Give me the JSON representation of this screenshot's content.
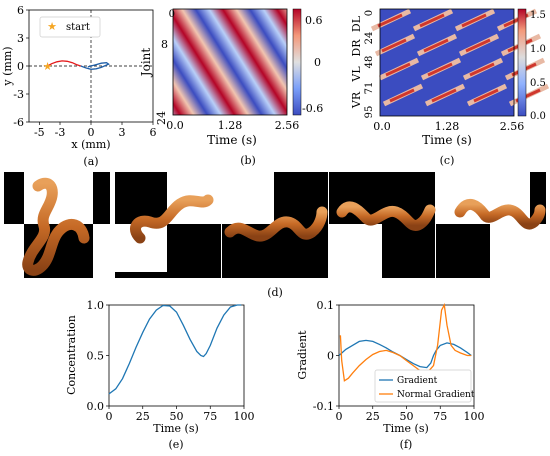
{
  "chart_data": [
    {
      "panel": "(a)",
      "type": "line",
      "xlabel": "x (mm)",
      "ylabel": "y (mm)",
      "xlim": [
        -6,
        6
      ],
      "ylim": [
        -6,
        6
      ],
      "xticks": [
        -5,
        -3,
        0,
        3,
        6
      ],
      "yticks": [
        -6,
        -3,
        0,
        3,
        6
      ],
      "legend": {
        "entries": [
          "start"
        ],
        "placement": "top-left"
      },
      "start_point": {
        "x": -4.2,
        "y": 0
      },
      "series": [
        {
          "color": "#e41a1c",
          "x": [
            -4.2,
            -3.8,
            -3.3,
            -2.8,
            -2.3,
            -1.8,
            -1.4,
            -1.0
          ],
          "y": [
            0.0,
            0.25,
            0.45,
            0.55,
            0.5,
            0.35,
            0.15,
            0.0
          ]
        },
        {
          "color": "#1f5fa8",
          "x": [
            -1.0,
            -0.5,
            0.0,
            0.5,
            1.0,
            1.4,
            1.7,
            1.5,
            1.0,
            0.5,
            0.0,
            -0.3
          ],
          "y": [
            0.0,
            -0.2,
            -0.35,
            -0.3,
            -0.15,
            0.05,
            0.2,
            0.35,
            0.3,
            0.15,
            0.0,
            -0.1
          ]
        }
      ]
    },
    {
      "panel": "(b)",
      "type": "heatmap",
      "xlabel": "Time (s)",
      "ylabel": "Joint",
      "xticks": [
        "0.0",
        "1.28",
        "2.56"
      ],
      "yticks": [
        "0",
        "8",
        "24"
      ],
      "colorbar": {
        "ticks": [
          "0.6",
          "0",
          "-0.6"
        ],
        "range": [
          -0.7,
          0.7
        ]
      }
    },
    {
      "panel": "(c)",
      "type": "heatmap",
      "xlabel": "Time (s)",
      "xticks": [
        "0.0",
        "1.28",
        "2.56"
      ],
      "yticks": [
        "0",
        "24",
        "48",
        "71",
        "95"
      ],
      "group_labels": [
        "VR",
        "VL",
        "DR",
        "DL"
      ],
      "colorbar": {
        "ticks": [
          "1.5",
          "1.0",
          "0.5",
          "0.0"
        ],
        "range": [
          0,
          1.6
        ]
      }
    },
    {
      "panel": "(e)",
      "type": "line",
      "xlabel": "Time (s)",
      "ylabel": "Concentration",
      "xlim": [
        0,
        100
      ],
      "ylim": [
        0,
        1
      ],
      "xticks": [
        0,
        25,
        50,
        75,
        100
      ],
      "yticks": [
        "0.0",
        "0.5",
        "1.0"
      ],
      "series": [
        {
          "color": "#1f77b4",
          "x": [
            0,
            5,
            10,
            15,
            20,
            25,
            30,
            35,
            40,
            45,
            50,
            55,
            60,
            65,
            68,
            70,
            72,
            75,
            80,
            85,
            90,
            95,
            98
          ],
          "y": [
            0.12,
            0.17,
            0.27,
            0.42,
            0.58,
            0.73,
            0.86,
            0.95,
            0.995,
            0.99,
            0.93,
            0.8,
            0.66,
            0.54,
            0.5,
            0.49,
            0.52,
            0.6,
            0.77,
            0.9,
            0.98,
            1.0,
            1.0
          ]
        }
      ]
    },
    {
      "panel": "(f)",
      "type": "line",
      "xlabel": "Time (s)",
      "ylabel": "Gradient",
      "xlim": [
        0,
        100
      ],
      "ylim": [
        -0.1,
        0.1
      ],
      "xticks": [
        0,
        25,
        50,
        75,
        100
      ],
      "yticks": [
        "0.1",
        "0",
        "-0.1"
      ],
      "legend": {
        "entries": [
          "Gradient",
          "Normal Gradient"
        ],
        "placement": "lower-right"
      },
      "series": [
        {
          "name": "Gradient",
          "color": "#1f77b4",
          "x": [
            0,
            5,
            10,
            15,
            20,
            25,
            30,
            35,
            40,
            45,
            50,
            55,
            60,
            65,
            68,
            70,
            72,
            75,
            80,
            85,
            90,
            95,
            98
          ],
          "y": [
            0.0,
            0.012,
            0.02,
            0.028,
            0.03,
            0.028,
            0.022,
            0.015,
            0.007,
            0.0,
            -0.008,
            -0.016,
            -0.022,
            -0.024,
            -0.015,
            0.0,
            0.01,
            0.02,
            0.025,
            0.022,
            0.015,
            0.006,
            0.0
          ]
        },
        {
          "name": "Normal Gradient",
          "color": "#ff7f0e",
          "x": [
            1,
            2,
            4,
            7,
            10,
            15,
            20,
            25,
            30,
            35,
            40,
            45,
            50,
            55,
            60,
            65,
            70,
            73,
            76,
            78,
            80,
            83,
            86,
            90,
            95,
            98
          ],
          "y": [
            0.04,
            -0.01,
            -0.05,
            -0.045,
            -0.035,
            -0.02,
            -0.008,
            0.002,
            0.008,
            0.01,
            0.006,
            0.0,
            -0.01,
            -0.02,
            -0.03,
            -0.035,
            -0.02,
            0.02,
            0.09,
            0.1,
            0.06,
            0.02,
            0.01,
            0.005,
            0.0,
            0.0
          ]
        }
      ]
    }
  ],
  "captions": {
    "a": "(a)",
    "b": "(b)",
    "c": "(c)",
    "d": "(d)",
    "e": "(e)",
    "f": "(f)"
  },
  "labels": {
    "a_legend": "start",
    "c_groups": [
      "VR",
      "VL",
      "DR",
      "DL"
    ]
  }
}
